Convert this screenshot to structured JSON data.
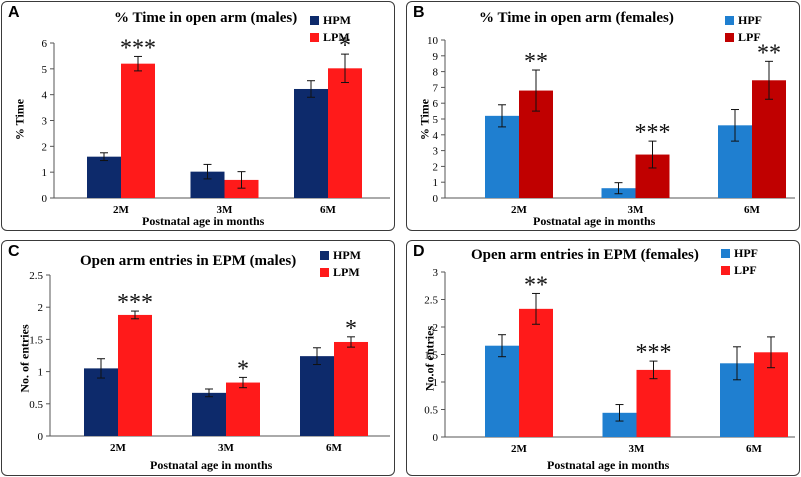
{
  "chart_data": [
    {
      "id": "A",
      "type": "bar",
      "title": "% Time in open arm (males)",
      "xlabel": "Postnatal age in months",
      "ylabel": "% Time",
      "ylim": [
        0,
        6
      ],
      "yticks": [
        "0",
        "1",
        "2",
        "3",
        "4",
        "5",
        "6"
      ],
      "categories": [
        "2M",
        "3M",
        "6M"
      ],
      "series": [
        {
          "name": "HPM",
          "color": "#0d2a6b",
          "values": [
            1.6,
            1.02,
            4.22
          ],
          "errors": [
            0.15,
            0.28,
            0.32
          ]
        },
        {
          "name": "LPM",
          "color": "#ff1a1a",
          "values": [
            5.2,
            0.7,
            5.02
          ],
          "errors": [
            0.28,
            0.32,
            0.55
          ]
        }
      ],
      "significance": [
        {
          "category": 0,
          "series": 1,
          "label": "***"
        },
        {
          "category": 2,
          "series": 1,
          "label": "*"
        }
      ]
    },
    {
      "id": "B",
      "type": "bar",
      "title": "% Time in open arm (females)",
      "xlabel": "Postnatal age in months",
      "ylabel": "% Time",
      "ylim": [
        0,
        10
      ],
      "yticks": [
        "0",
        "1",
        "2",
        "3",
        "4",
        "5",
        "6",
        "7",
        "8",
        "9",
        "10"
      ],
      "categories": [
        "2M",
        "3M",
        "6M"
      ],
      "series": [
        {
          "name": "HPF",
          "color": "#1f7fd0",
          "values": [
            5.2,
            0.62,
            4.6
          ],
          "errors": [
            0.7,
            0.35,
            1.0
          ]
        },
        {
          "name": "LPF",
          "color": "#c00000",
          "values": [
            6.8,
            2.75,
            7.45
          ],
          "errors": [
            1.3,
            0.85,
            1.2
          ]
        }
      ],
      "significance": [
        {
          "category": 0,
          "series": 1,
          "label": "**"
        },
        {
          "category": 1,
          "series": 1,
          "label": "***"
        },
        {
          "category": 2,
          "series": 1,
          "label": "**"
        }
      ]
    },
    {
      "id": "C",
      "type": "bar",
      "title": "Open arm entries in EPM (males)",
      "xlabel": "Postnatal age in months",
      "ylabel": "No. of entries",
      "ylim": [
        0,
        2.5
      ],
      "yticks": [
        "0",
        "0.5",
        "1",
        "1.5",
        "2",
        "2.5"
      ],
      "categories": [
        "2M",
        "3M",
        "6M"
      ],
      "series": [
        {
          "name": "HPM",
          "color": "#0d2a6b",
          "values": [
            1.05,
            0.67,
            1.24
          ],
          "errors": [
            0.15,
            0.06,
            0.13
          ]
        },
        {
          "name": "LPM",
          "color": "#ff1a1a",
          "values": [
            1.88,
            0.83,
            1.46
          ],
          "errors": [
            0.06,
            0.08,
            0.08
          ]
        }
      ],
      "significance": [
        {
          "category": 0,
          "series": 1,
          "label": "***"
        },
        {
          "category": 1,
          "series": 1,
          "label": "*"
        },
        {
          "category": 2,
          "series": 1,
          "label": "*"
        }
      ]
    },
    {
      "id": "D",
      "type": "bar",
      "title": "Open arm entries in EPM (females)",
      "xlabel": "Postnatal age in months",
      "ylabel": "No.of entries",
      "ylim": [
        0,
        3
      ],
      "yticks": [
        "0",
        "0.5",
        "1",
        "1.5",
        "2",
        "2.5",
        "3"
      ],
      "categories": [
        "2M",
        "3M",
        "6M"
      ],
      "series": [
        {
          "name": "HPF",
          "color": "#1f7fd0",
          "values": [
            1.66,
            0.44,
            1.34
          ],
          "errors": [
            0.2,
            0.15,
            0.3
          ]
        },
        {
          "name": "LPF",
          "color": "#ff1a1a",
          "values": [
            2.33,
            1.22,
            1.54
          ],
          "errors": [
            0.28,
            0.16,
            0.28
          ]
        }
      ],
      "significance": [
        {
          "category": 0,
          "series": 1,
          "label": "**"
        },
        {
          "category": 1,
          "series": 1,
          "label": "***"
        }
      ]
    }
  ]
}
